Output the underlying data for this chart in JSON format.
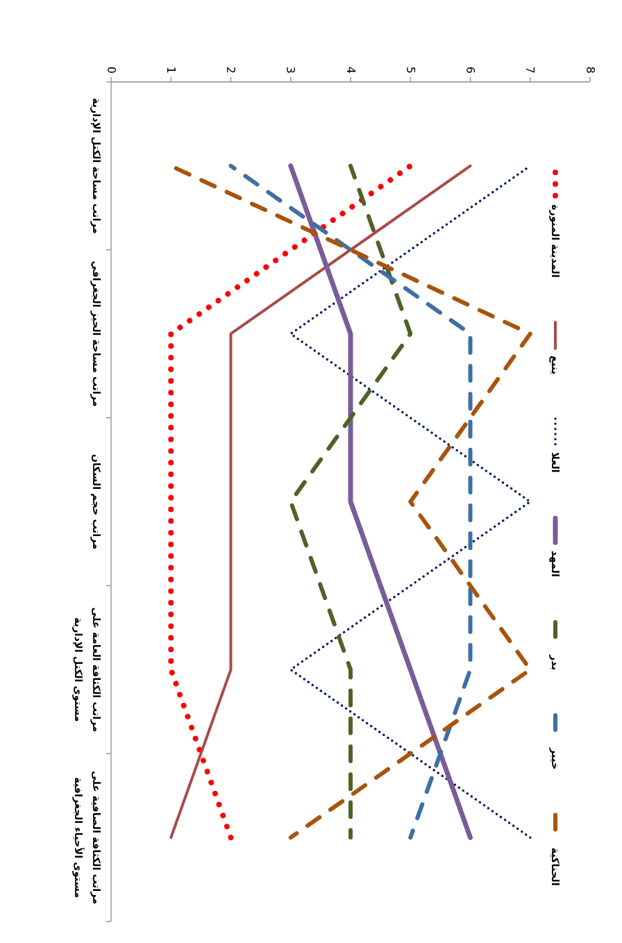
{
  "chart_data": {
    "type": "line",
    "orientation": "horizontal",
    "categories": [
      "مراتب مساحة الكتل الإدارية",
      "مراتب مساحة الحيز الجغرافي",
      "مراتب حجم السكان",
      "مراتب الكثافة العامة على مستوى الكتل الإدارية",
      "مراتب الكثافة الصافية على مستوى الأحياء الجغرافية"
    ],
    "series": [
      {
        "name": "المدينة المنورة",
        "color": "#ff0000",
        "line_style": "dotted",
        "values": [
          5,
          1,
          1,
          1,
          2
        ]
      },
      {
        "name": "ينبع",
        "color": "#a84a49",
        "line_style": "solid",
        "values": [
          6,
          2,
          2,
          2,
          1
        ]
      },
      {
        "name": "العلا",
        "color": "#002060",
        "line_style": "dotted",
        "values": [
          7,
          3,
          7,
          3,
          7
        ]
      },
      {
        "name": "المهد",
        "color": "#7a5c98",
        "line_style": "solid",
        "values": [
          3,
          4,
          4,
          5,
          6
        ]
      },
      {
        "name": "بدر",
        "color": "#4f6228",
        "line_style": "dashed",
        "values": [
          4,
          5,
          3,
          4,
          4
        ]
      },
      {
        "name": "خيبر",
        "color": "#3e6fa6",
        "line_style": "dashed",
        "values": [
          2,
          6,
          6,
          6,
          5
        ]
      },
      {
        "name": "الحناكية",
        "color": "#a8540c",
        "line_style": "dashed",
        "values": [
          1,
          7,
          5,
          7,
          3
        ]
      }
    ],
    "xlim": [
      0,
      8
    ],
    "xticks": [
      0,
      1,
      2,
      3,
      4,
      5,
      6,
      7,
      8
    ],
    "grid": false,
    "legend": "top",
    "marker": "none"
  }
}
